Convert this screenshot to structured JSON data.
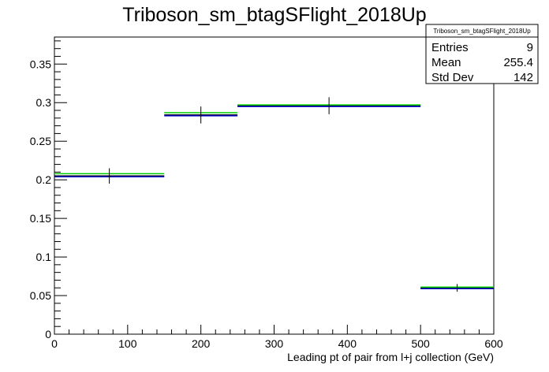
{
  "chart_data": {
    "type": "histogram",
    "title": "Triboson_sm_btagSFlight_2018Up",
    "xlabel": "Leading pt of pair from l+j collection (GeV)",
    "ylabel": "",
    "xlim": [
      0,
      600
    ],
    "ylim": [
      0,
      0.385
    ],
    "x_ticks": [
      0,
      100,
      200,
      300,
      400,
      500,
      600
    ],
    "x_tick_labels": [
      "0",
      "100",
      "200",
      "300",
      "400",
      "500",
      "600"
    ],
    "y_ticks": [
      0,
      0.05,
      0.1,
      0.15,
      0.2,
      0.25,
      0.3,
      0.35
    ],
    "y_tick_labels": [
      "0",
      "0.05",
      "0.1",
      "0.15",
      "0.2",
      "0.25",
      "0.3",
      "0.35"
    ],
    "grid": false,
    "bins": [
      {
        "low": 0,
        "high": 150,
        "center": 75,
        "value": 0.205,
        "error": 0.01
      },
      {
        "low": 150,
        "high": 250,
        "center": 200,
        "value": 0.284,
        "error": 0.011
      },
      {
        "low": 250,
        "high": 500,
        "center": 375,
        "value": 0.296,
        "error": 0.011
      },
      {
        "low": 500,
        "high": 600,
        "center": 550,
        "value": 0.06,
        "error": 0.005
      }
    ],
    "series": [
      {
        "color": "#000000",
        "values": [
          0.205,
          0.284,
          0.296,
          0.06
        ]
      },
      {
        "color": "#0000cc",
        "values": [
          0.204,
          0.283,
          0.295,
          0.059
        ]
      },
      {
        "color": "#00cc00",
        "values": [
          0.208,
          0.287,
          0.297,
          0.061
        ]
      }
    ],
    "stats_box": {
      "title": "Triboson_sm_btagSFlight_2018Up",
      "placement": "top-right",
      "rows": [
        {
          "label": "Entries",
          "value": "9"
        },
        {
          "label": "Mean",
          "value": "255.4"
        },
        {
          "label": "Std Dev",
          "value": "142"
        }
      ]
    }
  }
}
